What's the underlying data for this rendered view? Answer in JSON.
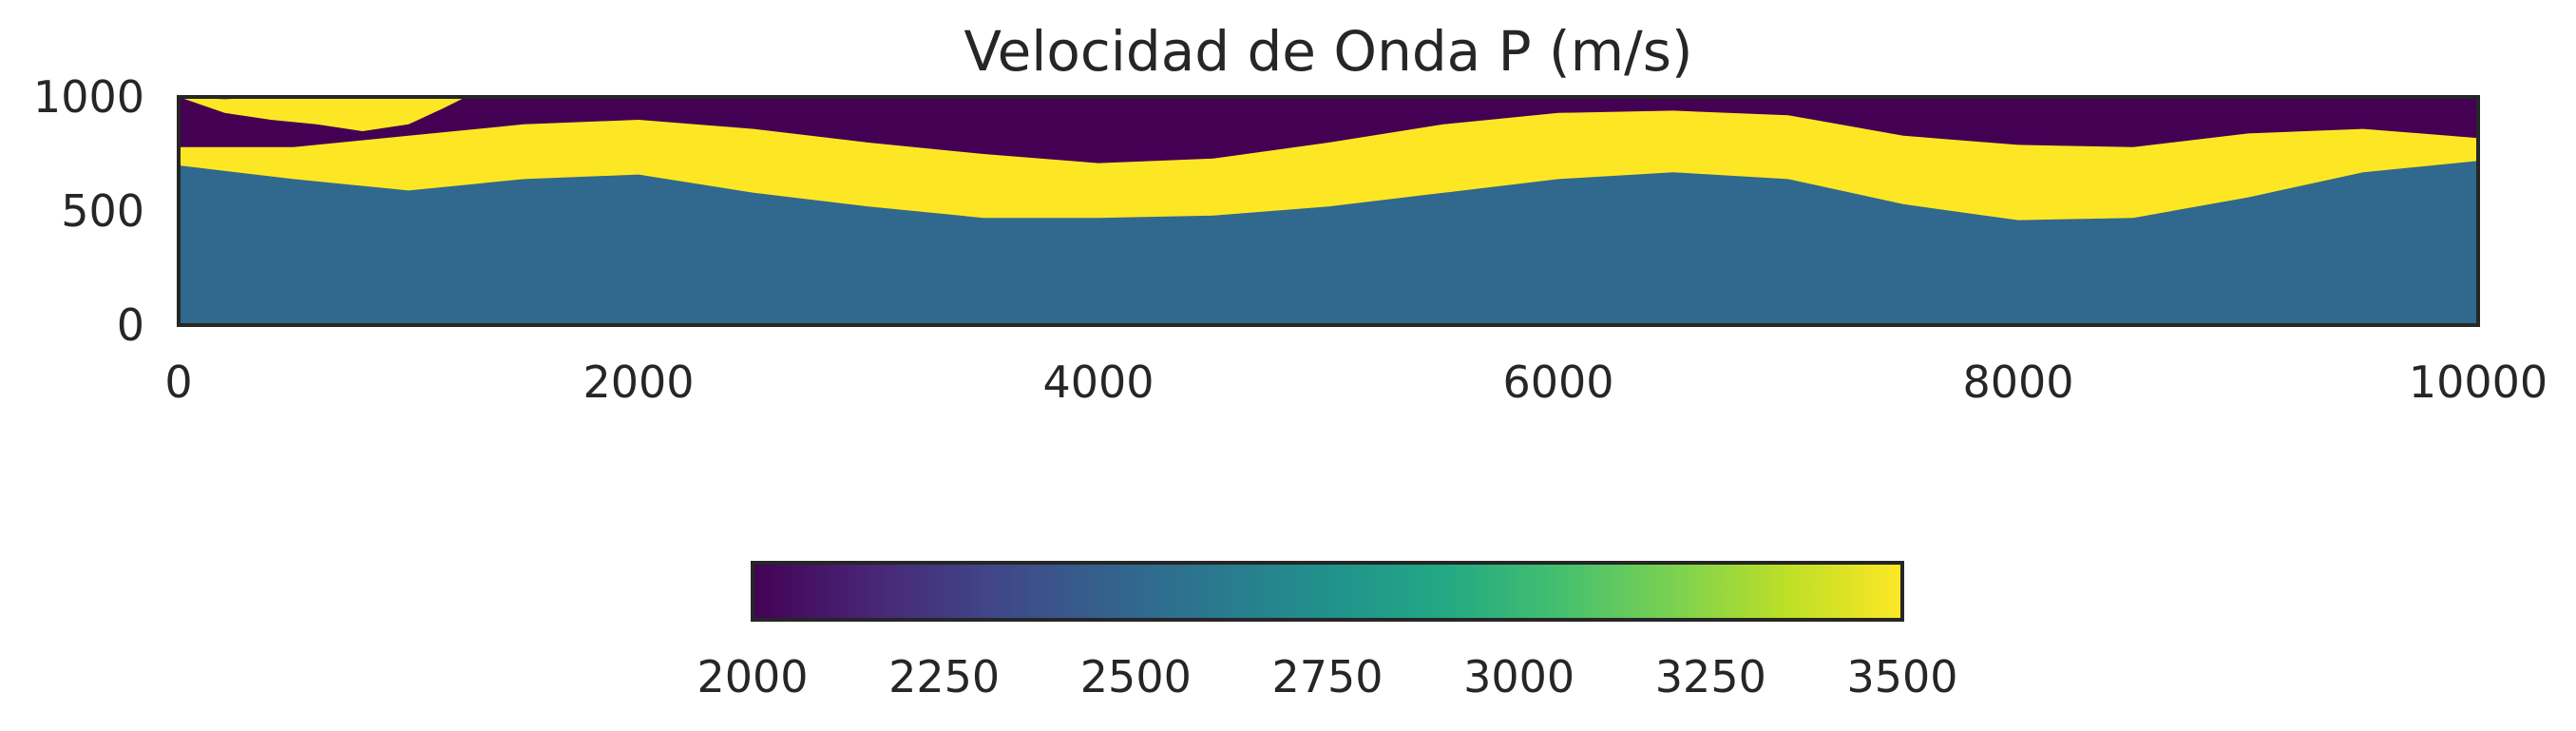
{
  "chart_data": {
    "type": "heatmap",
    "title": "Velocidad de Onda P (m/s)",
    "xlabel": "",
    "ylabel": "",
    "xlim": [
      0,
      10000
    ],
    "ylim": [
      0,
      1000
    ],
    "x_ticks": [
      "0",
      "2000",
      "4000",
      "6000",
      "8000",
      "10000"
    ],
    "y_ticks": [
      "0",
      "500",
      "1000"
    ],
    "grid": false,
    "colormap": "viridis",
    "colorbar": {
      "orientation": "horizontal",
      "range": [
        2000,
        3500
      ],
      "ticks": [
        "2000",
        "2250",
        "2500",
        "2750",
        "3000",
        "3250",
        "3500"
      ]
    },
    "layers": [
      {
        "name_hidden": true,
        "velocity": 2500,
        "top_boundary": {
          "x": [
            0,
            500,
            1000,
            1500,
            2000,
            2500,
            3000,
            3500,
            4000,
            4500,
            5000,
            5500,
            6000,
            6500,
            7000,
            7500,
            8000,
            8500,
            9000,
            9500,
            10000
          ],
          "y": [
            700,
            640,
            590,
            640,
            660,
            580,
            520,
            470,
            470,
            480,
            520,
            580,
            640,
            670,
            640,
            530,
            460,
            470,
            560,
            670,
            720
          ]
        }
      },
      {
        "name_hidden": true,
        "velocity": 3500,
        "top_boundary": {
          "x": [
            0,
            500,
            1000,
            1500,
            2000,
            2500,
            3000,
            3500,
            4000,
            4500,
            5000,
            5500,
            6000,
            6500,
            7000,
            7500,
            8000,
            8500,
            9000,
            9500,
            10000
          ],
          "y": [
            780,
            780,
            830,
            880,
            900,
            860,
            800,
            750,
            710,
            730,
            800,
            880,
            930,
            940,
            920,
            830,
            790,
            780,
            840,
            860,
            820
          ]
        }
      },
      {
        "name_hidden": true,
        "velocity": 2000,
        "region": "top"
      },
      {
        "name_hidden": true,
        "velocity": 3500,
        "region": "lens",
        "x": [
          0,
          200,
          400,
          600,
          800,
          1000,
          1150,
          1250
        ],
        "y_top": [
          1000,
          990,
          1000,
          1000,
          1000,
          1000,
          1000,
          1000
        ],
        "y_bottom": [
          1000,
          930,
          900,
          880,
          850,
          880,
          950,
          1000
        ]
      }
    ],
    "colors": {
      "v2000": "#440154",
      "v2500": "#31688e",
      "v3500": "#fde725",
      "axis": "#262626",
      "text": "#262626"
    }
  }
}
